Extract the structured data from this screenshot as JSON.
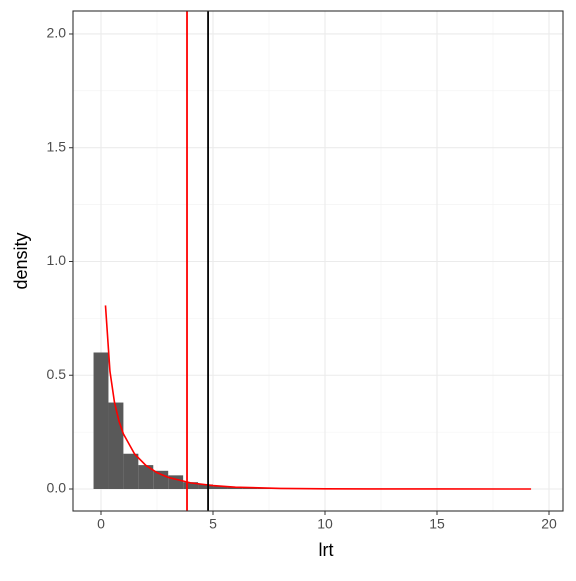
{
  "chart_data": {
    "type": "histogram",
    "xlabel": "lrt",
    "ylabel": "density",
    "bins": [
      -0.333,
      0.333,
      1.0,
      1.667,
      2.333,
      3.0,
      3.667,
      4.333,
      5.0,
      5.667,
      6.333,
      7.0,
      7.667,
      8.333,
      9.0,
      9.667,
      10.333,
      11.0,
      11.667,
      12.333,
      13.0,
      13.667,
      14.333,
      15.0,
      15.667,
      16.333,
      17.0,
      17.667,
      18.333,
      19.0,
      19.667
    ],
    "values": [
      0.6,
      0.38,
      0.155,
      0.105,
      0.08,
      0.06,
      0.03,
      0.02,
      0.012,
      0.008,
      0.005,
      0.003,
      0.002,
      0.002,
      0.001,
      0.001,
      0.001,
      0.0,
      0.0,
      0.0,
      0.0,
      0.0,
      0.0,
      0.0,
      0.0,
      0.0,
      0.0,
      0.0,
      0.0,
      0.0
    ],
    "color": "#595959",
    "curve": {
      "color": "#ff0000",
      "x": [
        0.2,
        0.4,
        0.6,
        0.8,
        1,
        1.5,
        2,
        2.5,
        3,
        4,
        5,
        6,
        8,
        10,
        12,
        15,
        19.2
      ],
      "values": [
        0.807,
        0.517,
        0.382,
        0.299,
        0.242,
        0.154,
        0.104,
        0.072,
        0.051,
        0.027,
        0.015,
        0.008,
        0.0026,
        0.0008,
        0.0003,
        0.0001,
        0.0
      ]
    },
    "vlines": [
      {
        "value": 3.84,
        "color": "#ff0000"
      },
      {
        "value": 4.78,
        "color": "#000000"
      }
    ],
    "xlim": [
      -1.25,
      20.625
    ],
    "ylim": [
      -0.0967,
      2.101
    ],
    "xticks": [
      0,
      5,
      10,
      15,
      20
    ],
    "yticks": [
      {
        "value": 0,
        "label": "0.0"
      },
      0.5,
      {
        "value": 1,
        "label": "1.0"
      },
      1.5,
      {
        "value": 2,
        "label": "2.0"
      }
    ],
    "grid": true
  }
}
